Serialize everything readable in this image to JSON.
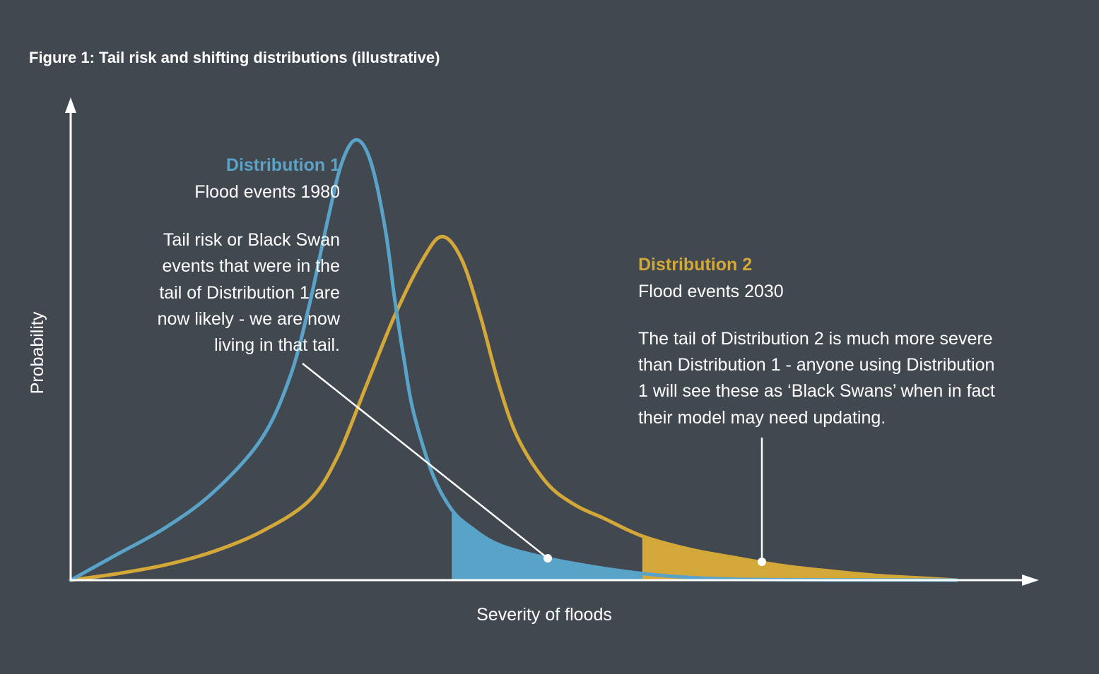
{
  "colors": {
    "background": "#41484f",
    "distribution_1": "#5aa3c8",
    "distribution_2": "#d4a838",
    "axis": "#ffffff",
    "text": "#ffffff"
  },
  "chart_data": {
    "type": "line",
    "title": "Figure 1: Tail risk and shifting distributions (illustrative)",
    "xlabel": "Severity of floods",
    "ylabel": "Probability",
    "xlim": [
      0,
      100
    ],
    "ylim": [
      0,
      100
    ],
    "grid": false,
    "illustrative": true,
    "series": [
      {
        "name": "Distribution 1",
        "subtitle": "Flood events 1980",
        "color": "#5aa3c8",
        "x": [
          0,
          5,
          10,
          15,
          20,
          23,
          25,
          27,
          28.5,
          30,
          31.5,
          33,
          34,
          35,
          36,
          38,
          40,
          42,
          45,
          50,
          55,
          60,
          65,
          70,
          75,
          80,
          85,
          90,
          93
        ],
        "y": [
          0,
          6,
          12,
          20,
          32,
          46,
          62,
          82,
          95,
          100,
          95,
          80,
          64,
          50,
          38,
          24,
          16,
          12,
          8,
          5,
          3,
          1.5,
          0.6,
          0.2,
          0.1,
          0.05,
          0.02,
          0.01,
          0
        ],
        "shaded_tail_from_x": 40,
        "shaded_tail_to_x": 60
      },
      {
        "name": "Distribution 2",
        "subtitle": "Flood events 2030",
        "color": "#d4a838",
        "x": [
          0,
          5,
          10,
          15,
          20,
          25,
          28,
          31,
          34,
          37,
          39,
          41,
          43,
          45,
          47,
          50,
          53,
          56,
          60,
          65,
          70,
          75,
          80,
          85,
          90,
          93
        ],
        "y": [
          0,
          1.5,
          3.5,
          6.5,
          11,
          18,
          28,
          44,
          60,
          73,
          78,
          73,
          60,
          44,
          32,
          22,
          17,
          14,
          10,
          7,
          5,
          3.2,
          2,
          1,
          0.4,
          0
        ],
        "shaded_tail_from_x": 60,
        "shaded_tail_to_x": 93
      }
    ],
    "annotations": [
      {
        "target": "Distribution 1",
        "heading": "Distribution 1",
        "subheading": "Flood events 1980",
        "lines": [
          "Tail risk or Black Swan",
          "events that were in the",
          "tail of Distribution 1 are",
          "now likely - we are now",
          "living in that tail."
        ]
      },
      {
        "target": "Distribution 2",
        "heading": "Distribution 2",
        "subheading": "Flood events 2030",
        "lines": [
          "The tail of Distribution 2 is much more severe",
          "than Distribution 1 - anyone using Distribution",
          "1 will see these as ‘Black Swans’ when in fact",
          "their model may need updating."
        ]
      }
    ]
  }
}
